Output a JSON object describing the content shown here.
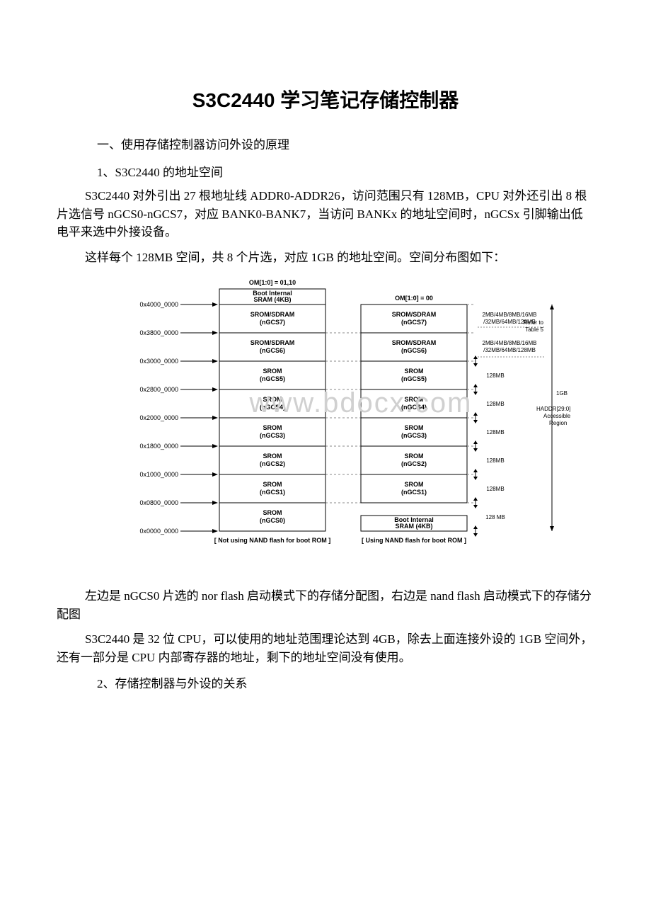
{
  "title": "S3C2440 学习笔记存储控制器",
  "section1": "　一、使用存储控制器访问外设的原理",
  "sub1_1": "　1、S3C2440 的地址空间",
  "p1": "S3C2440 对外引出 27 根地址线 ADDR0-ADDR26，访问范围只有 128MB，CPU 对外还引出 8 根片选信号 nGCS0-nGCS7，对应 BANK0-BANK7，当访问 BANKx 的地址空间时，nGCSx 引脚输出低电平来选中外接设备。",
  "p2": "这样每个 128MB 空间，共 8 个片选，对应 1GB 的地址空间。空间分布图如下：",
  "p3": "左边是 nGCS0 片选的 nor flash 启动模式下的存储分配图，右边是 nand flash 启动模式下的存储分配图",
  "p4": "S3C2440 是 32 位 CPU，可以使用的地址范围理论达到 4GB，除去上面连接外设的 1GB 空间外，还有一部分是 CPU 内部寄存器的地址，剩下的地址空间没有使用。",
  "sub1_2": "　2、存储控制器与外设的关系",
  "diagram": {
    "title_left": "OM[1:0] = 01,10",
    "title_right": "OM[1:0] = 00",
    "caption_left": "[ Not using NAND flash for boot ROM ]",
    "caption_right": "[ Using NAND flash for boot ROM ]",
    "watermark": "www.bdocx.com",
    "addresses": [
      "0x4000_0000",
      "0x3800_0000",
      "0x3000_0000",
      "0x2800_0000",
      "0x2000_0000",
      "0x1800_0000",
      "0x1000_0000",
      "0x0800_0000",
      "0x0000_0000"
    ],
    "left_top": [
      "Boot Internal",
      "SRAM (4KB)"
    ],
    "banks_left": [
      [
        "SROM/SDRAM",
        "(nGCS7)"
      ],
      [
        "SROM/SDRAM",
        "(nGCS6)"
      ],
      [
        "SROM",
        "(nGCS5)"
      ],
      [
        "SROM",
        "(nGCS4)"
      ],
      [
        "SROM",
        "(nGCS3)"
      ],
      [
        "SROM",
        "(nGCS2)"
      ],
      [
        "SROM",
        "(nGCS1)"
      ],
      [
        "SROM",
        "(nGCS0)"
      ]
    ],
    "banks_right": [
      [
        "SROM/SDRAM",
        "(nGCS7)"
      ],
      [
        "SROM/SDRAM",
        "(nGCS6)"
      ],
      [
        "SROM",
        "(nGCS5)"
      ],
      [
        "SROM",
        "(nGCS4)"
      ],
      [
        "SROM",
        "(nGCS3)"
      ],
      [
        "SROM",
        "(nGCS2)"
      ],
      [
        "SROM",
        "(nGCS1)"
      ]
    ],
    "right_bottom": [
      "Boot Internal",
      "SRAM (4KB)"
    ],
    "sizes": [
      [
        "2MB/4MB/8MB/16MB",
        "/32MB/64MB/128MB"
      ],
      [
        "2MB/4MB/8MB/16MB",
        "/32MB/64MB/128MB"
      ],
      [
        "128MB"
      ],
      [
        "128MB"
      ],
      [
        "128MB"
      ],
      [
        "128MB"
      ],
      [
        "128MB"
      ],
      [
        "128 MB"
      ]
    ],
    "refer": "Refer to",
    "table5": "Table 5",
    "side1": "1GB",
    "side2": "HADDR[29:0]",
    "side3": "Accessible",
    "side4": "Region",
    "colors": {
      "line": "#000000",
      "dash": "#888888",
      "bg": "#ffffff",
      "txt": "#000000"
    },
    "font": {
      "addr": 9,
      "cell": 9,
      "caption": 9,
      "title": 9,
      "side": 8
    }
  }
}
